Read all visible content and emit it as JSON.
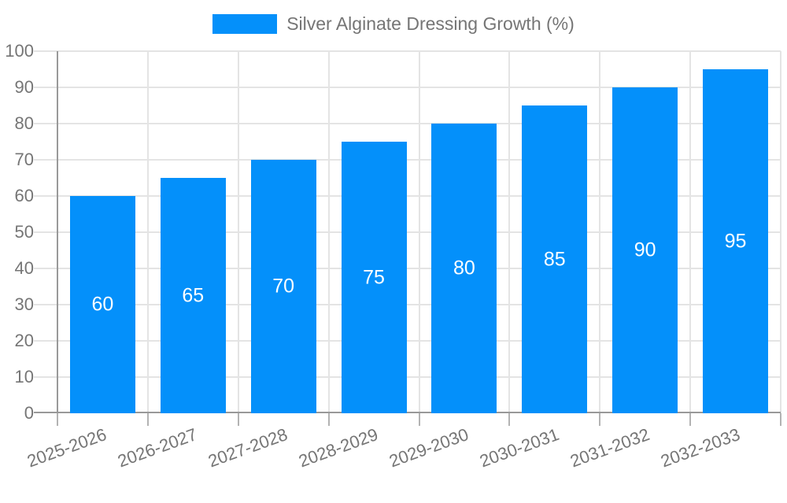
{
  "chart_data": {
    "type": "bar",
    "title": "Silver Alginate Dressing Growth (%)",
    "categories": [
      "2025-2026",
      "2026-2027",
      "2027-2028",
      "2028-2029",
      "2029-2030",
      "2030-2031",
      "2031-2032",
      "2032-2033"
    ],
    "values": [
      60,
      65,
      70,
      75,
      80,
      85,
      90,
      95
    ],
    "ylim": [
      0,
      100
    ],
    "ytick_step": 10,
    "ytick_labels": [
      "0",
      "10",
      "20",
      "30",
      "40",
      "50",
      "60",
      "70",
      "80",
      "90",
      "100"
    ],
    "xlabel": "",
    "ylabel": "",
    "grid": true,
    "x_label_rotation_deg": -20,
    "legend": {
      "label": "Silver Alginate Dressing Growth (%)",
      "position": "top-center"
    },
    "colors": {
      "bar": "#0490FA",
      "value_label_text": "#FFFFFF",
      "axis_text": "#757575",
      "gridline": "#E4E4E4",
      "axis_line": "#999999",
      "tick": "#B3B3B3",
      "background": "#FFFFFF"
    }
  }
}
